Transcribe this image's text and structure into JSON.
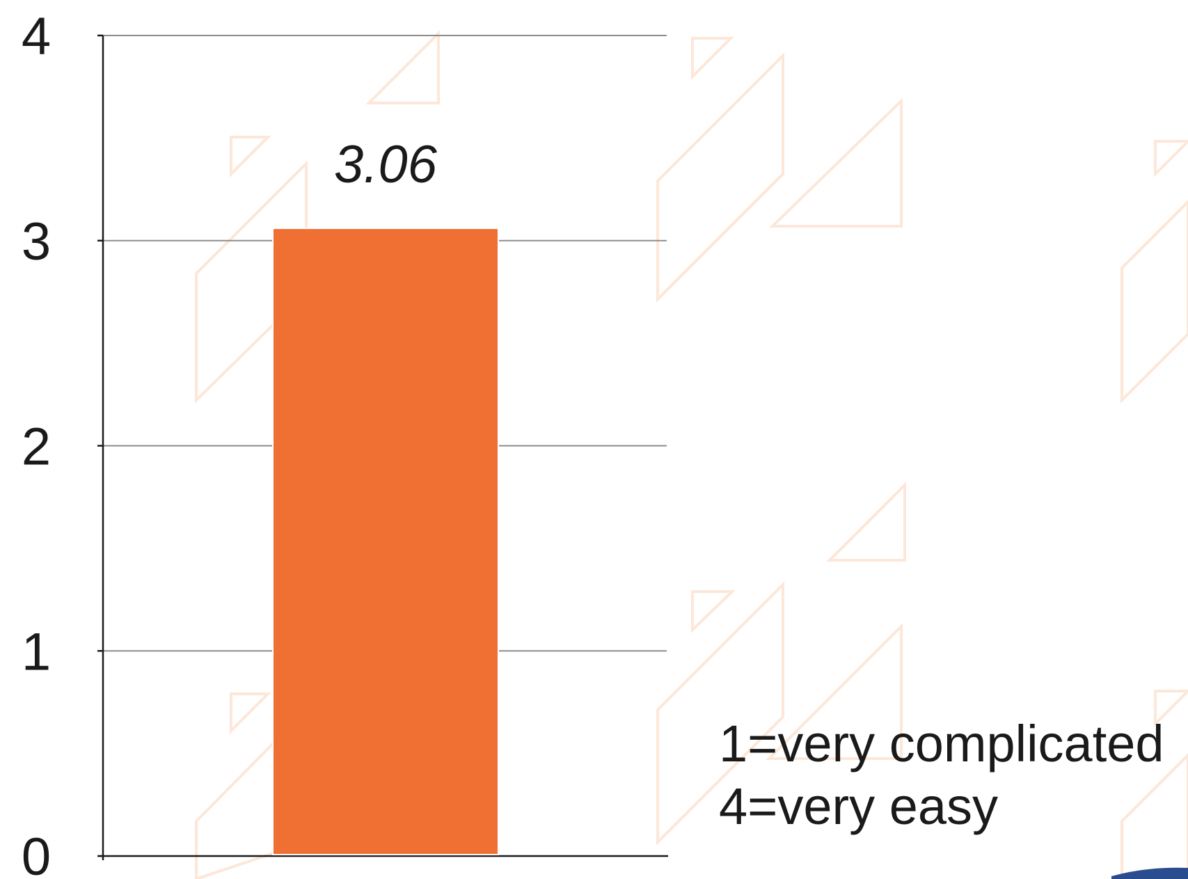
{
  "chart_data": {
    "type": "bar",
    "categories": [
      ""
    ],
    "values": [
      3.06
    ],
    "data_labels": [
      "3.06"
    ],
    "ylim": [
      0,
      4
    ],
    "yticks": [
      0,
      1,
      2,
      3,
      4
    ],
    "ytick_labels": [
      "0",
      "1",
      "2",
      "3",
      "4"
    ],
    "grid": true,
    "bar_color": "#f07033",
    "title": "",
    "xlabel": "",
    "ylabel": ""
  },
  "legend_note": {
    "line1": "1=very complicated",
    "line2": "4=very easy"
  },
  "colors": {
    "background_pattern": "#fde7d8",
    "gridline": "#8c8c8c",
    "axis": "#1a1a1a",
    "text": "#1a1a1a",
    "corner_accent": "#2a4d8f"
  }
}
